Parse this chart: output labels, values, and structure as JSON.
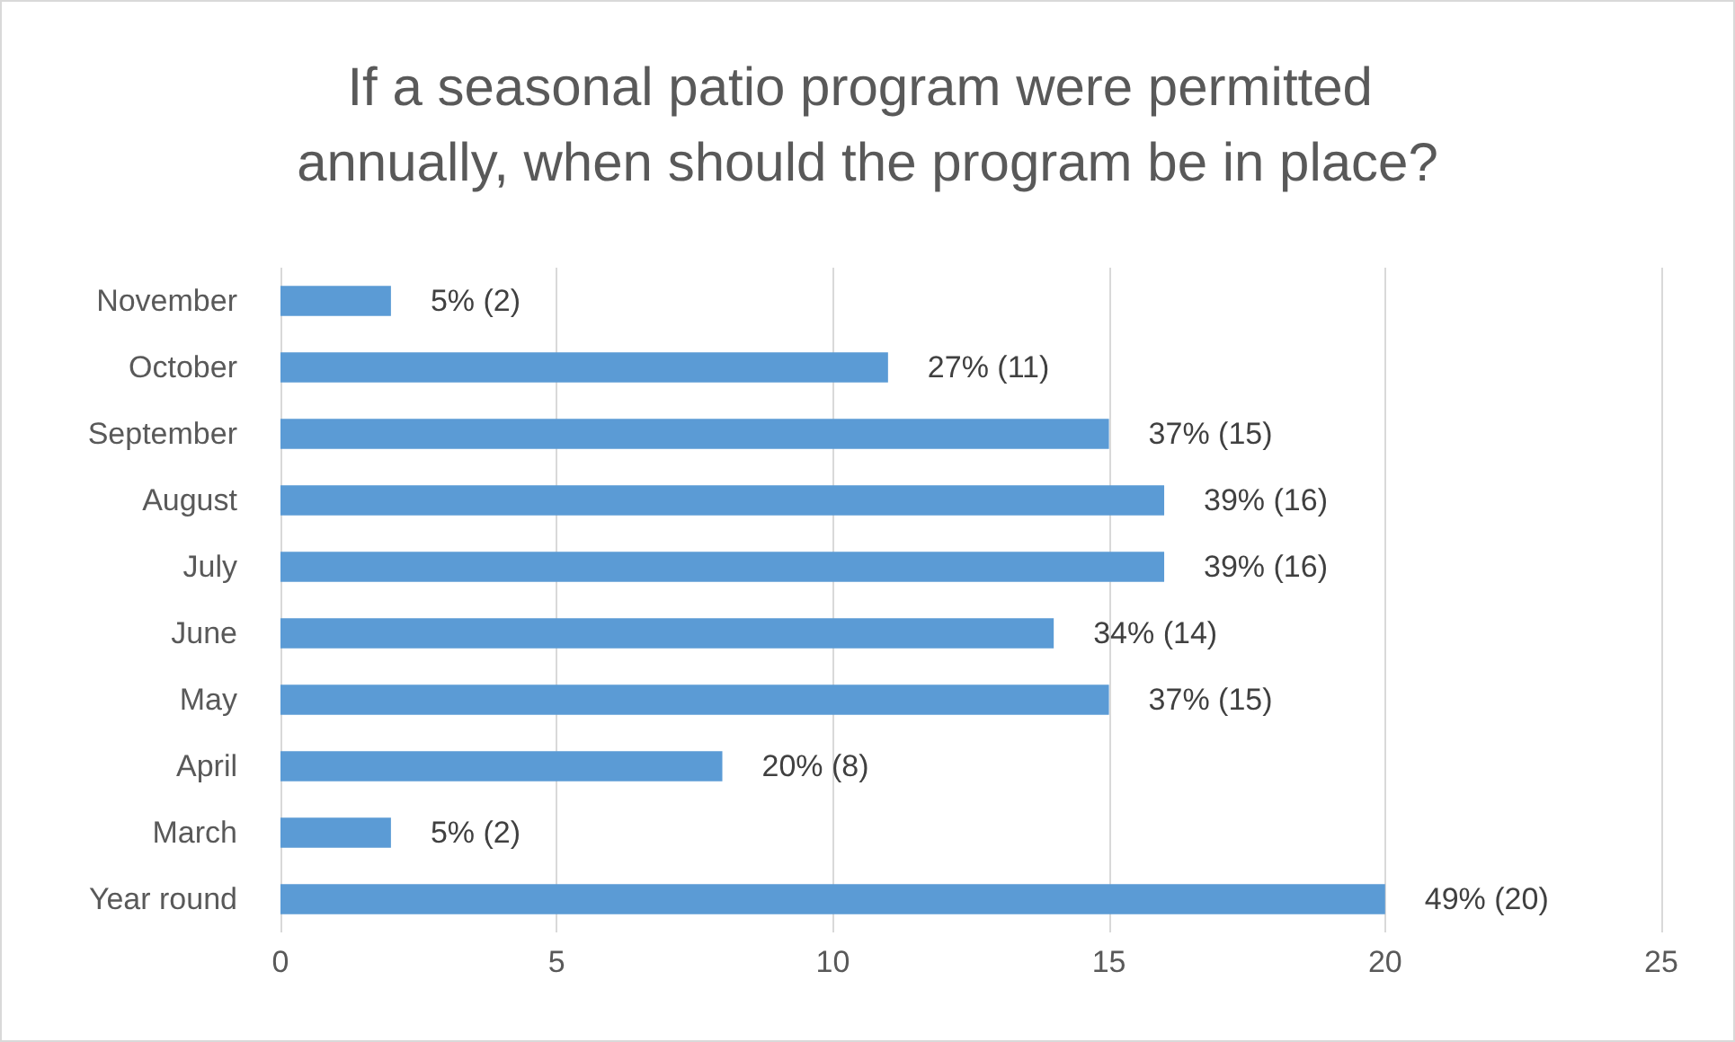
{
  "chart_data": {
    "type": "bar",
    "orientation": "horizontal",
    "title": "If a seasonal patio program were permitted annually, when should the program be in place?",
    "categories": [
      "November",
      "October",
      "September",
      "August",
      "July",
      "June",
      "May",
      "April",
      "March",
      "Year round"
    ],
    "values": [
      2,
      11,
      15,
      16,
      16,
      14,
      15,
      8,
      2,
      20
    ],
    "value_labels": [
      "5% (2)",
      "27% (11)",
      "37% (15)",
      "39% (16)",
      "39% (16)",
      "34% (14)",
      "37% (15)",
      "20% (8)",
      "5% (2)",
      "49% (20)"
    ],
    "color": "#5b9bd5",
    "xlim": [
      0,
      25
    ],
    "xticks": [
      0,
      5,
      10,
      15,
      20,
      25
    ],
    "grid": "x"
  }
}
